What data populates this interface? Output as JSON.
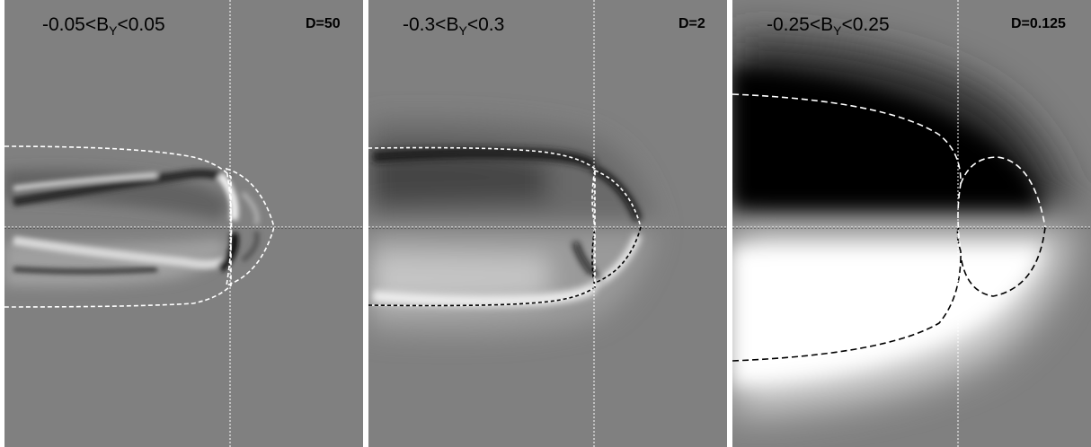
{
  "panels": [
    {
      "range_prefix": "-0.05<B",
      "range_sub": "Y",
      "range_suffix": "<0.05",
      "d_label": "D=50"
    },
    {
      "range_prefix": "-0.3<B",
      "range_sub": "Y",
      "range_suffix": "<0.3",
      "d_label": "D=2"
    },
    {
      "range_prefix": "-0.25<B",
      "range_sub": "Y",
      "range_suffix": "<0.25",
      "d_label": "D=0.125"
    }
  ],
  "colors": {
    "background": "#808080",
    "positive": "#ffffff",
    "negative": "#000000",
    "boundary_light": "#ffffff",
    "boundary_dark": "#000000"
  }
}
